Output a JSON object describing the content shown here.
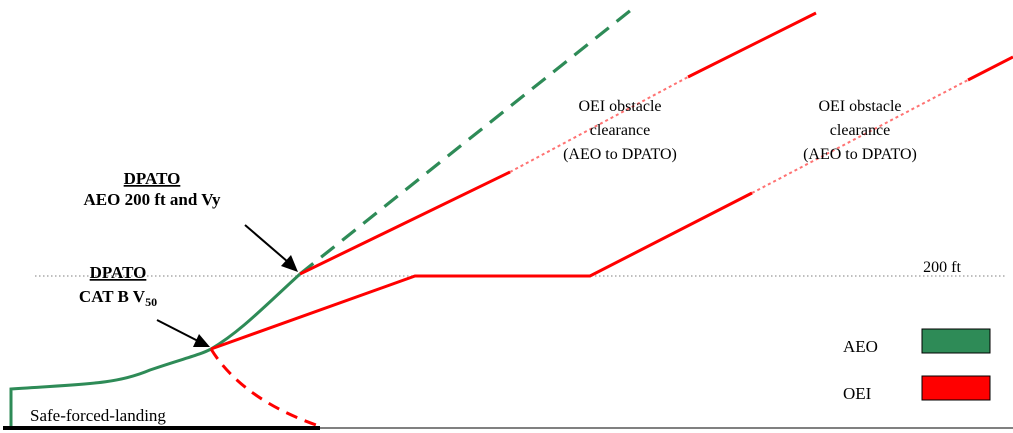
{
  "colors": {
    "aeo": "#2e8b57",
    "oei": "#ff0000",
    "ground": "#000000",
    "reference": "#999999",
    "text": "#000000"
  },
  "labels": {
    "dpato_upper_title": "DPATO",
    "dpato_upper_sub": "AEO 200 ft and Vy",
    "dpato_lower_title": "DPATO",
    "dpato_lower_sub": "CAT B V",
    "dpato_lower_sub_subscript": "50",
    "obstacle_1_line1": "OEI obstacle",
    "obstacle_1_line2": "clearance",
    "obstacle_1_line3": "(AEO to DPATO)",
    "obstacle_2_line1": "OEI obstacle",
    "obstacle_2_line2": "clearance",
    "obstacle_2_line3": "(AEO to DPATO)",
    "height_200": "200 ft",
    "safe_forced_landing": "Safe-forced-landing"
  },
  "legend": {
    "items": [
      {
        "label": "AEO",
        "color_key": "aeo"
      },
      {
        "label": "OEI",
        "color_key": "oei"
      }
    ]
  }
}
